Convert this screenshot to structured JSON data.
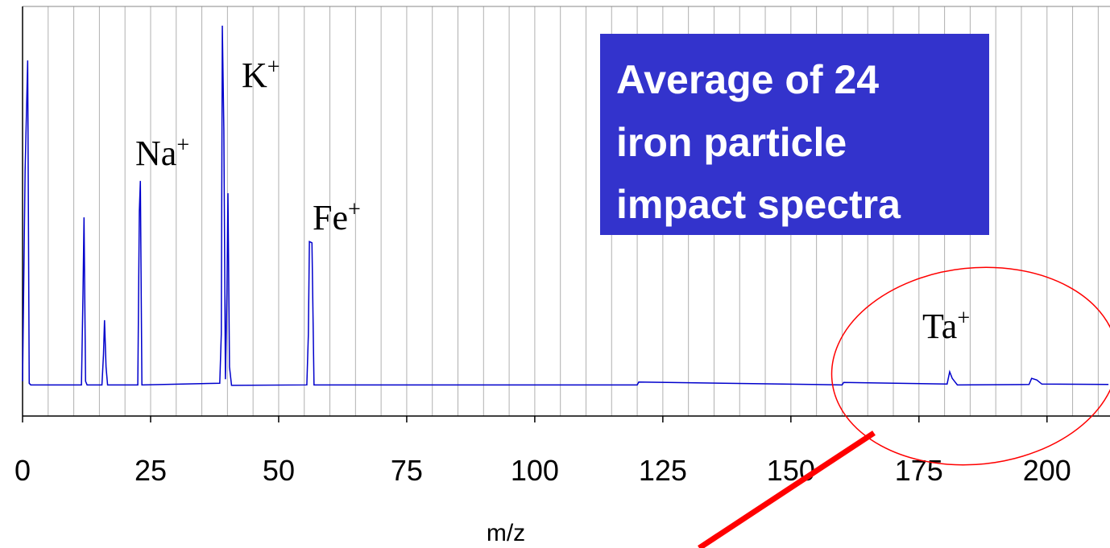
{
  "chart_data": {
    "type": "line",
    "xlabel": "m/z",
    "xlim": [
      0,
      212.3
    ],
    "ylim": [
      0,
      100
    ],
    "xticks": [
      0,
      25,
      50,
      75,
      100,
      125,
      150,
      175,
      200
    ],
    "xgrid": [
      0,
      5,
      10,
      15,
      20,
      25,
      30,
      35,
      40,
      45,
      50,
      55,
      60,
      65,
      70,
      75,
      80,
      85,
      90,
      95,
      100,
      105,
      110,
      115,
      120,
      125,
      130,
      135,
      140,
      145,
      150,
      155,
      160,
      165,
      170,
      175,
      180,
      185,
      190,
      195,
      200,
      205,
      210
    ],
    "grid": true,
    "series": [
      {
        "color": "#0000cc",
        "x": [
          0,
          0.5,
          1,
          1.3,
          1.6,
          2,
          11.5,
          11.8,
          12,
          12.3,
          12.6,
          15.5,
          15.8,
          16,
          16.3,
          16.6,
          22.5,
          22.8,
          23,
          23.3,
          38.5,
          38.8,
          39,
          39.3,
          39.6,
          39.9,
          40.1,
          40.4,
          40.8,
          55.5,
          55.8,
          56,
          56.5,
          56.9,
          120,
          120.3,
          160,
          160.3,
          180.5,
          181,
          181.5,
          182.5,
          196.5,
          197,
          198,
          199,
          212
        ],
        "values": [
          8.5,
          60,
          86.8,
          8,
          7.6,
          7.6,
          7.6,
          30,
          48.5,
          8.5,
          7.6,
          7.6,
          15,
          23.4,
          12,
          7.6,
          7.6,
          50,
          57.4,
          7.6,
          8,
          20,
          95.3,
          70,
          9,
          30,
          54.4,
          12,
          7.5,
          7.6,
          20,
          42.6,
          42.3,
          7.6,
          7.6,
          8.3,
          7.6,
          8.2,
          7.8,
          10.8,
          9.2,
          7.6,
          7.7,
          9.2,
          8.8,
          7.8,
          7.7
        ]
      }
    ],
    "annotations": [
      {
        "text": "Na",
        "sup": "+"
      },
      {
        "text": "K",
        "sup": "+"
      },
      {
        "text": "Fe",
        "sup": "+"
      },
      {
        "text": "Ta",
        "sup": "+"
      }
    ],
    "box_text": [
      "Average of 24",
      "iron particle",
      "impact spectra"
    ]
  }
}
